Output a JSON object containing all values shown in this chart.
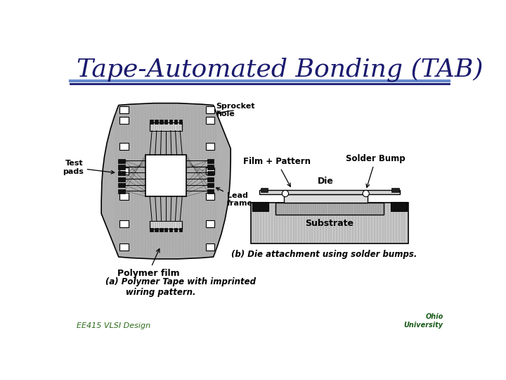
{
  "title": "Tape-Automated Bonding (TAB)",
  "title_color": "#1a1a6e",
  "title_fontsize": 26,
  "footer_text": "EE415 VLSI Design",
  "footer_color": "#2d6b1a",
  "footer_fontsize": 8,
  "bg_color": "#ffffff",
  "rule_color_top": "#6688cc",
  "rule_color_bottom": "#1a1a6e",
  "caption_a": "(a) Polymer Tape with imprinted\n       wiring pattern.",
  "caption_b": "(b) Die attachment using solder bumps.",
  "label_sprocket": "Sprocket\nhole",
  "label_test": "Test\npads",
  "label_lead": "Lead\nframe",
  "label_polymer": "Polymer film",
  "label_film": "Film + Pattern",
  "label_die": "Die",
  "label_solder": "Solder Bump",
  "label_substrate": "Substrate",
  "gray_tape": "#b0b0b0",
  "gray_substrate": "#c8c8c8"
}
